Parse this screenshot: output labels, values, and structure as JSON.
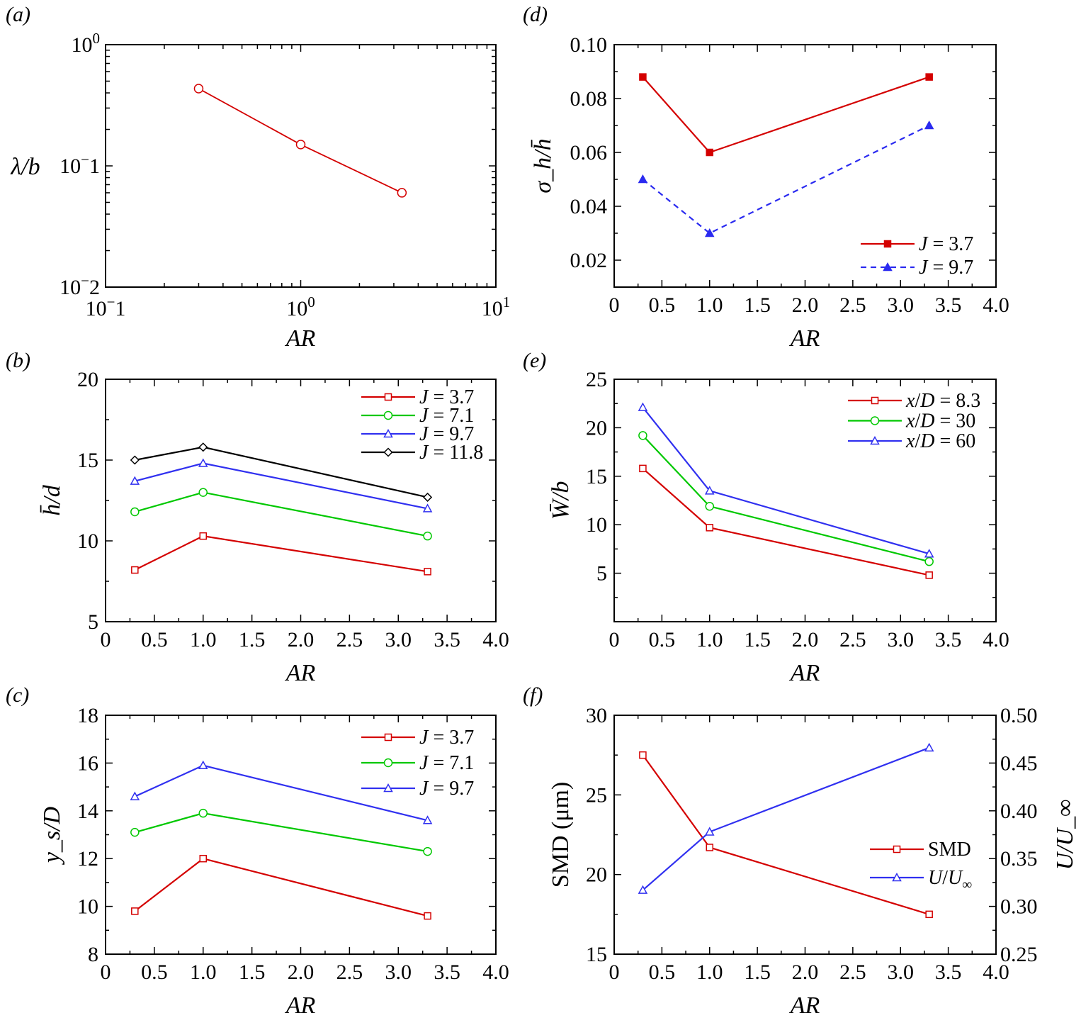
{
  "chart_data": [
    {
      "panel_label": "(a)",
      "type": "line",
      "xlabel": "AR",
      "ylabel": "λ/b",
      "xscale": "log",
      "yscale": "log",
      "xlim": [
        0.1,
        10
      ],
      "ylim": [
        0.01,
        1
      ],
      "xticks": [
        {
          "v": 0.1,
          "base": "10",
          "exp": "−1"
        },
        {
          "v": 1,
          "base": "10",
          "exp": "0"
        },
        {
          "v": 10,
          "base": "10",
          "exp": "1"
        }
      ],
      "yticks": [
        {
          "v": 0.01,
          "base": "10",
          "exp": "−2"
        },
        {
          "v": 0.1,
          "base": "10",
          "exp": "−1"
        },
        {
          "v": 1,
          "base": "10",
          "exp": "0"
        }
      ],
      "x": [
        0.3,
        1.0,
        3.3
      ],
      "series": [
        {
          "color": "#d40000",
          "marker": "circle",
          "filled": false,
          "dashed": false,
          "values": [
            0.434,
            0.15,
            0.06
          ]
        }
      ],
      "legend": null,
      "grid": false
    },
    {
      "panel_label": "(d)",
      "type": "line",
      "xlabel": "AR",
      "ylabel": "σ_h/h̄",
      "xlim": [
        0,
        4
      ],
      "ylim": [
        0.01,
        0.1
      ],
      "xticks": [
        "0",
        "0.5",
        "1.0",
        "1.5",
        "2.0",
        "2.5",
        "3.0",
        "3.5",
        "4.0"
      ],
      "yticks": [
        "0.02",
        "0.04",
        "0.06",
        "0.08",
        "0.10"
      ],
      "x": [
        0.3,
        1.0,
        3.3
      ],
      "series": [
        {
          "name": "J = 3.7",
          "color": "#d40000",
          "marker": "square",
          "filled": true,
          "dashed": false,
          "values": [
            0.088,
            0.06,
            0.088
          ]
        },
        {
          "name": "J = 9.7",
          "color": "#2a2af0",
          "marker": "triangle",
          "filled": true,
          "dashed": true,
          "values": [
            0.05,
            0.03,
            0.07
          ]
        }
      ],
      "legend": "bottom-right",
      "grid": false
    },
    {
      "panel_label": "(b)",
      "type": "line",
      "xlabel": "AR",
      "ylabel": "h̄/d",
      "xlim": [
        0,
        4
      ],
      "ylim": [
        5,
        20
      ],
      "xticks": [
        "0",
        "0.5",
        "1.0",
        "1.5",
        "2.0",
        "2.5",
        "3.0",
        "3.5",
        "4.0"
      ],
      "yticks": [
        "5",
        "10",
        "15",
        "20"
      ],
      "x": [
        0.3,
        1.0,
        3.3
      ],
      "series": [
        {
          "name": "J = 3.7",
          "color": "#d40000",
          "marker": "square",
          "filled": false,
          "dashed": false,
          "values": [
            8.2,
            10.3,
            8.1
          ]
        },
        {
          "name": "J = 7.1",
          "color": "#00c800",
          "marker": "circle",
          "filled": false,
          "dashed": false,
          "values": [
            11.8,
            13.0,
            10.3
          ]
        },
        {
          "name": "J = 9.7",
          "color": "#3030f0",
          "marker": "triangle",
          "filled": false,
          "dashed": false,
          "values": [
            13.7,
            14.8,
            12.0
          ]
        },
        {
          "name": "J = 11.8",
          "color": "#000000",
          "marker": "diamond",
          "filled": false,
          "dashed": false,
          "values": [
            15.0,
            15.8,
            12.7
          ]
        }
      ],
      "legend": "top-right",
      "grid": false
    },
    {
      "panel_label": "(e)",
      "type": "line",
      "xlabel": "AR",
      "ylabel": "W̄/b",
      "xlim": [
        0,
        4
      ],
      "ylim": [
        0,
        25
      ],
      "xticks": [
        "0",
        "0.5",
        "1.0",
        "1.5",
        "2.0",
        "2.5",
        "3.0",
        "3.5",
        "4.0"
      ],
      "yticks": [
        "5",
        "10",
        "15",
        "20",
        "25"
      ],
      "x": [
        0.3,
        1.0,
        3.3
      ],
      "series": [
        {
          "name": "x/D = 8.3",
          "color": "#d40000",
          "marker": "square",
          "filled": false,
          "dashed": false,
          "values": [
            15.8,
            9.7,
            4.8
          ]
        },
        {
          "name": "x/D = 30",
          "color": "#00c800",
          "marker": "circle",
          "filled": false,
          "dashed": false,
          "values": [
            19.2,
            11.9,
            6.2
          ]
        },
        {
          "name": "x/D = 60",
          "color": "#3030f0",
          "marker": "triangle",
          "filled": false,
          "dashed": false,
          "values": [
            22.1,
            13.5,
            7.0
          ]
        }
      ],
      "legend": "top-right",
      "grid": false
    },
    {
      "panel_label": "(c)",
      "type": "line",
      "xlabel": "AR",
      "ylabel": "y_s/D",
      "xlim": [
        0,
        4
      ],
      "ylim": [
        8,
        18
      ],
      "xticks": [
        "0",
        "0.5",
        "1.0",
        "1.5",
        "2.0",
        "2.5",
        "3.0",
        "3.5",
        "4.0"
      ],
      "yticks": [
        "8",
        "10",
        "12",
        "14",
        "16",
        "18"
      ],
      "x": [
        0.3,
        1.0,
        3.3
      ],
      "series": [
        {
          "name": "J = 3.7",
          "color": "#d40000",
          "marker": "square",
          "filled": false,
          "dashed": false,
          "values": [
            9.8,
            12.0,
            9.6
          ]
        },
        {
          "name": "J = 7.1",
          "color": "#00c800",
          "marker": "circle",
          "filled": false,
          "dashed": false,
          "values": [
            13.1,
            13.9,
            12.3
          ]
        },
        {
          "name": "J = 9.7",
          "color": "#3030f0",
          "marker": "triangle",
          "filled": false,
          "dashed": false,
          "values": [
            14.6,
            15.9,
            13.6
          ]
        }
      ],
      "legend": "top-right",
      "grid": false
    },
    {
      "panel_label": "(f)",
      "type": "line",
      "xlabel": "AR",
      "ylabel": "SMD (μm)",
      "y2label": "U/U_∞",
      "xlim": [
        0,
        4
      ],
      "ylim": [
        15,
        30
      ],
      "y2lim": [
        0.25,
        0.5
      ],
      "xticks": [
        "0",
        "0.5",
        "1.0",
        "1.5",
        "2.0",
        "2.5",
        "3.0",
        "3.5",
        "4.0"
      ],
      "yticks": [
        "15",
        "20",
        "25",
        "30"
      ],
      "y2ticks": [
        "0.25",
        "0.30",
        "0.35",
        "0.40",
        "0.45",
        "0.50"
      ],
      "x": [
        0.3,
        1.0,
        3.3
      ],
      "series": [
        {
          "name": "SMD",
          "axis": "left",
          "color": "#d40000",
          "marker": "square",
          "filled": false,
          "dashed": false,
          "values": [
            27.5,
            21.7,
            17.5
          ]
        },
        {
          "name": "U/U_∞",
          "axis": "right",
          "color": "#3030f0",
          "marker": "triangle",
          "filled": false,
          "dashed": false,
          "values": [
            0.317,
            0.378,
            0.466
          ]
        }
      ],
      "legend": "right",
      "grid": false
    }
  ]
}
